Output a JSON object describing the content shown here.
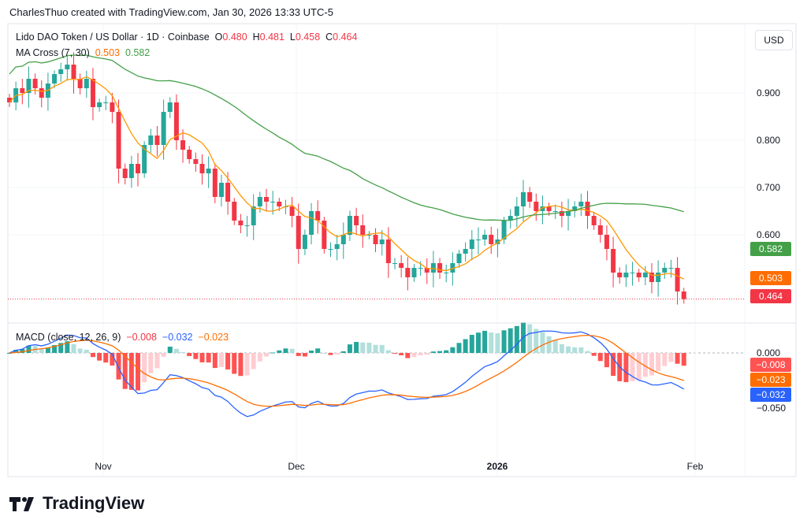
{
  "header": {
    "credit": "CharlesThuo created with TradingView.com, Jan 30, 2026 13:33 UTC-5"
  },
  "legend": {
    "symbol": "Lido DAO Token / US Dollar · 1D · Coinbase",
    "o_label": "O",
    "o": "0.480",
    "h_label": "H",
    "h": "0.481",
    "l_label": "L",
    "l": "0.458",
    "c_label": "C",
    "c": "0.464",
    "ma_label": "MA Cross (7, 30)",
    "ma_fast": "0.503",
    "ma_slow": "0.582",
    "macd_label": "MACD (close, 12, 26, 9)",
    "macd_hist": "−0.008",
    "macd_line": "−0.032",
    "macd_signal": "−0.023"
  },
  "currency_button": "USD",
  "logo": {
    "text": "TradingView"
  },
  "colors": {
    "up": "#26a69a",
    "down": "#f23645",
    "ma_fast": "#ff9800",
    "ma_slow": "#43a047",
    "macd": "#2962ff",
    "signal": "#ff6d00"
  },
  "chart_data": {
    "type": "candlestick",
    "title": "Lido DAO Token / US Dollar · 1D · Coinbase",
    "first_date": "2025-10-17",
    "close": [
      0.88,
      0.91,
      0.9,
      0.93,
      0.91,
      0.89,
      0.92,
      0.94,
      0.95,
      0.96,
      0.93,
      0.91,
      0.93,
      0.87,
      0.88,
      0.88,
      0.86,
      0.74,
      0.72,
      0.75,
      0.73,
      0.79,
      0.81,
      0.79,
      0.86,
      0.88,
      0.8,
      0.78,
      0.76,
      0.75,
      0.73,
      0.74,
      0.68,
      0.71,
      0.67,
      0.63,
      0.62,
      0.62,
      0.66,
      0.68,
      0.67,
      0.67,
      0.66,
      0.66,
      0.64,
      0.57,
      0.6,
      0.65,
      0.63,
      0.57,
      0.57,
      0.58,
      0.6,
      0.64,
      0.62,
      0.6,
      0.6,
      0.58,
      0.59,
      0.54,
      0.54,
      0.53,
      0.51,
      0.53,
      0.53,
      0.52,
      0.54,
      0.52,
      0.52,
      0.54,
      0.56,
      0.57,
      0.59,
      0.59,
      0.6,
      0.58,
      0.59,
      0.63,
      0.64,
      0.66,
      0.69,
      0.67,
      0.65,
      0.66,
      0.65,
      0.65,
      0.64,
      0.65,
      0.66,
      0.67,
      0.64,
      0.62,
      0.6,
      0.57,
      0.52,
      0.51,
      0.52,
      0.52,
      0.51,
      0.52,
      0.5,
      0.52,
      0.53,
      0.53,
      0.48,
      0.464
    ],
    "price_ticks": [
      "0.900",
      "0.800",
      "0.700",
      "0.600"
    ],
    "price_tick_values": [
      0.9,
      0.8,
      0.7,
      0.6
    ],
    "macd_ticks": [
      "0.000",
      "−0.050"
    ],
    "macd_tick_values": [
      0,
      -0.05
    ],
    "x_ticks": [
      "Nov",
      "Dec",
      "2026",
      "Feb"
    ],
    "price_tags": {
      "ma_slow": "0.582",
      "ma_fast": "0.503",
      "last": "0.464"
    },
    "macd_tags": {
      "hist": "−0.008",
      "signal": "−0.023",
      "macd": "−0.032"
    }
  }
}
